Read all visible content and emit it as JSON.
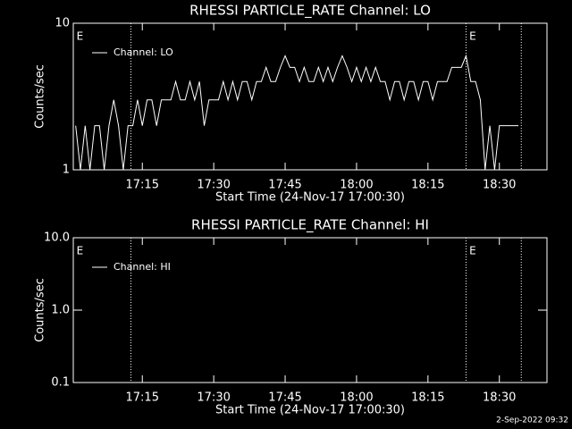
{
  "chart_data": [
    {
      "type": "line",
      "title": "RHESSI PARTICLE_RATE Channel: LO",
      "xlabel": "Start Time (24-Nov-17 17:00:30)",
      "ylabel": "Counts/sec",
      "x": [
        1,
        2,
        3,
        4,
        5,
        6,
        7,
        8,
        9,
        10,
        11,
        12,
        13,
        14,
        15,
        16,
        17,
        18,
        19,
        20,
        21,
        22,
        23,
        24,
        25,
        26,
        27,
        28,
        29,
        30,
        31,
        32,
        33,
        34,
        35,
        36,
        37,
        38,
        39,
        40,
        41,
        42,
        43,
        44,
        45,
        46,
        47,
        48,
        49,
        50,
        51,
        52,
        53,
        54,
        55,
        56,
        57,
        58,
        59,
        60,
        61,
        62,
        63,
        64,
        65,
        66,
        67,
        68,
        69,
        70,
        71,
        72,
        73,
        74,
        75,
        76,
        77,
        78,
        79,
        80,
        81,
        82,
        83,
        84,
        85,
        86,
        87,
        88,
        89,
        90,
        91,
        92,
        93,
        94
      ],
      "series": [
        {
          "name": "Channel: LO",
          "color": "#ffffff",
          "values": [
            2,
            1,
            2,
            1,
            2,
            2,
            1,
            2,
            3,
            2,
            1,
            2,
            2,
            3,
            2,
            3,
            3,
            2,
            3,
            3,
            3,
            4,
            3,
            3,
            4,
            3,
            4,
            2,
            3,
            3,
            3,
            4,
            3,
            4,
            3,
            4,
            4,
            3,
            4,
            4,
            5,
            4,
            4,
            5,
            6,
            5,
            5,
            4,
            5,
            4,
            4,
            5,
            4,
            5,
            4,
            5,
            6,
            5,
            4,
            5,
            4,
            5,
            4,
            5,
            4,
            4,
            3,
            4,
            4,
            3,
            4,
            4,
            3,
            4,
            4,
            3,
            4,
            4,
            4,
            5,
            5,
            5,
            6,
            4,
            4,
            3,
            1,
            2,
            1,
            2,
            2,
            2,
            2,
            2
          ]
        }
      ],
      "xlim": [
        0.5,
        100
      ],
      "xticks": [
        {
          "value": 15,
          "label": "17:15"
        },
        {
          "value": 30,
          "label": "17:30"
        },
        {
          "value": 45,
          "label": "17:45"
        },
        {
          "value": 60,
          "label": "18:00"
        },
        {
          "value": 75,
          "label": "18:15"
        },
        {
          "value": 90,
          "label": "18:30"
        }
      ],
      "ylim": [
        1,
        10
      ],
      "yticks": [
        1,
        10
      ],
      "log_y": true,
      "vlines": [
        12.6,
        83,
        94.6
      ],
      "annotations": [
        {
          "text": "E",
          "x": 1
        },
        {
          "text": "E",
          "x": 83.5
        }
      ]
    },
    {
      "type": "line",
      "title": "RHESSI PARTICLE_RATE Channel: HI",
      "xlabel": "Start Time (24-Nov-17 17:00:30)",
      "ylabel": "Counts/sec",
      "x": [],
      "series": [
        {
          "name": "Channel: HI",
          "color": "#ffffff",
          "values": []
        }
      ],
      "xlim": [
        0.5,
        100
      ],
      "xticks": [
        {
          "value": 15,
          "label": "17:15"
        },
        {
          "value": 30,
          "label": "17:30"
        },
        {
          "value": 45,
          "label": "17:45"
        },
        {
          "value": 60,
          "label": "18:00"
        },
        {
          "value": 75,
          "label": "18:15"
        },
        {
          "value": 90,
          "label": "18:30"
        }
      ],
      "ylim": [
        0.1,
        10
      ],
      "yticks": [
        0.1,
        {
          "value": 1,
          "label": "1.0"
        },
        {
          "value": 10,
          "label": "10.0"
        }
      ],
      "log_y": true,
      "vlines": [
        12.6,
        83,
        94.6
      ],
      "annotations": [
        {
          "text": "E",
          "x": 1
        },
        {
          "text": "E",
          "x": 83.5
        }
      ]
    }
  ],
  "footer": "2-Sep-2022 09:32"
}
